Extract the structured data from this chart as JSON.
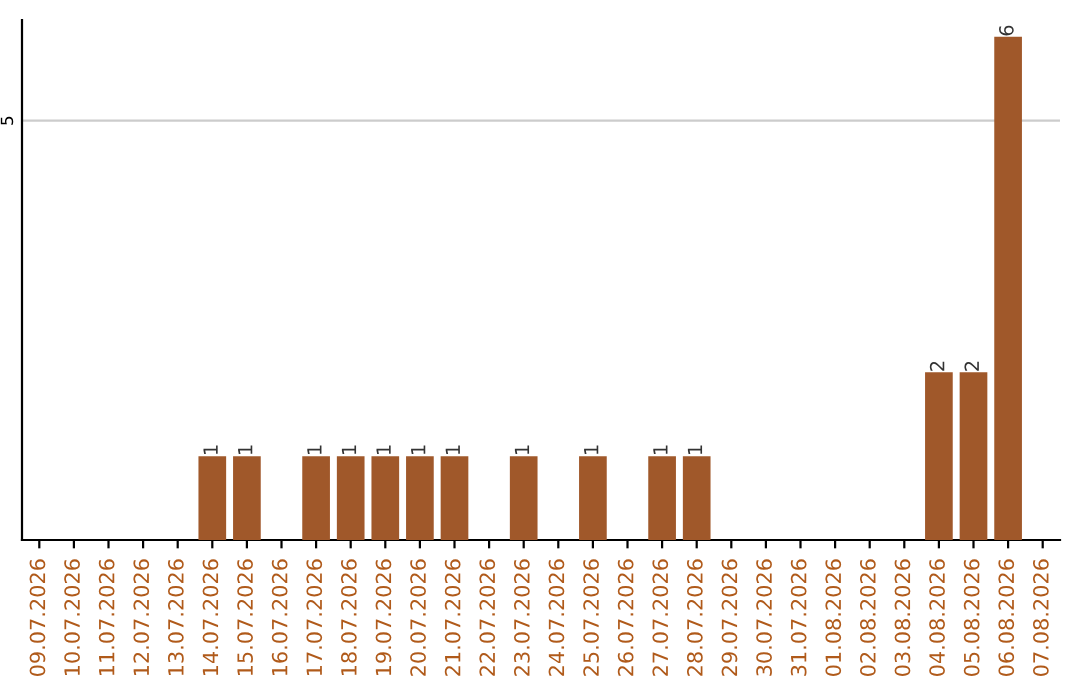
{
  "chart_data": {
    "type": "bar",
    "categories": [
      "09.07.2026",
      "10.07.2026",
      "11.07.2026",
      "12.07.2026",
      "13.07.2026",
      "14.07.2026",
      "15.07.2026",
      "16.07.2026",
      "17.07.2026",
      "18.07.2026",
      "19.07.2026",
      "20.07.2026",
      "21.07.2026",
      "22.07.2026",
      "23.07.2026",
      "24.07.2026",
      "25.07.2026",
      "26.07.2026",
      "27.07.2026",
      "28.07.2026",
      "29.07.2026",
      "30.07.2026",
      "31.07.2026",
      "01.08.2026",
      "02.08.2026",
      "03.08.2026",
      "04.08.2026",
      "05.08.2026",
      "06.08.2026",
      "07.08.2026"
    ],
    "values": [
      0,
      0,
      0,
      0,
      0,
      1,
      1,
      0,
      1,
      1,
      1,
      1,
      1,
      0,
      1,
      0,
      1,
      0,
      1,
      1,
      0,
      0,
      0,
      0,
      0,
      0,
      2,
      2,
      6,
      0
    ],
    "value_labels": [
      null,
      null,
      null,
      null,
      null,
      "1",
      "1",
      null,
      "1",
      "1",
      "1",
      "1",
      "1",
      null,
      "1",
      null,
      "1",
      null,
      "1",
      "1",
      null,
      null,
      null,
      null,
      null,
      null,
      "2",
      "2",
      "6",
      null
    ],
    "color": "#a0582a",
    "ylim": [
      0,
      6.2
    ],
    "yticks": [
      5
    ],
    "grid": "y",
    "legend": false
  }
}
